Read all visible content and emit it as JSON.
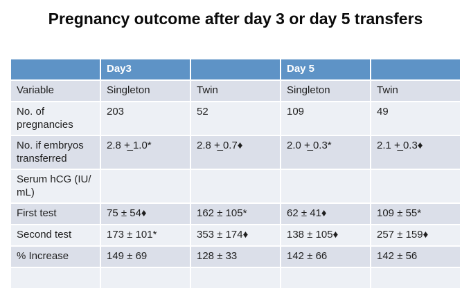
{
  "title": "Pregnancy outcome after day 3 or day 5 transfers",
  "colors": {
    "header_bg": "#5e93c6",
    "header_text": "#ffffff",
    "band_dark": "#dbdfe9",
    "band_light": "#edf0f5",
    "body_text": "#1f1f1f",
    "border": "#ffffff"
  },
  "table": {
    "header_row": {
      "cells": [
        "",
        "Day3",
        "",
        "Day 5",
        ""
      ]
    },
    "rows": [
      {
        "cells": [
          "Variable",
          "Singleton",
          "Twin",
          "Singleton",
          "Twin"
        ]
      },
      {
        "cells": [
          "No. of pregnancies",
          "203",
          "52",
          "109",
          "49"
        ]
      },
      {
        "cells": [
          "No. if embryos transferred",
          "2.8 +̲ 1.0*",
          "2.8 +̲ 0.7♦",
          "2.0 +̲ 0.3*",
          "2.1 +̲ 0.3♦"
        ]
      },
      {
        "cells": [
          "Serum hCG (IU/​mL)",
          "",
          "",
          "",
          ""
        ]
      },
      {
        "cells": [
          "First test",
          "75 ± 54♦",
          "162 ± 105*",
          "62 ± 41♦",
          "109 ± 55*"
        ]
      },
      {
        "cells": [
          "Second test",
          "173 ± 101*",
          "353 ± 174♦",
          "138 ± 105♦",
          "257 ± 159♦"
        ]
      },
      {
        "cells": [
          "% Increase",
          "149 ± 69",
          "128 ± 33",
          "142 ± 66",
          "142 ± 56"
        ]
      },
      {
        "cells": [
          "",
          "",
          "",
          "",
          ""
        ]
      }
    ]
  }
}
